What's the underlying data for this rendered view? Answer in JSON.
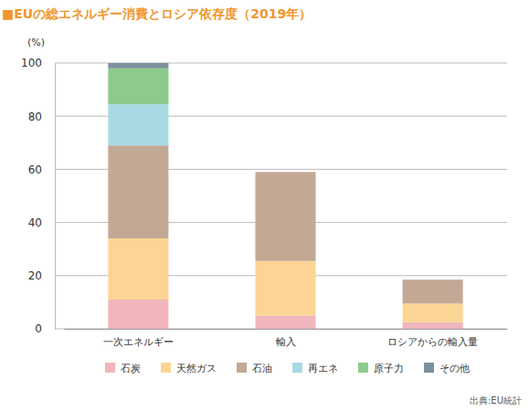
{
  "chart_data": {
    "type": "bar",
    "stacked": true,
    "title": "■EUの総エネルギー消費とロシア依存度（2019年）",
    "y_label": "(%)",
    "source": "出典:EU統計",
    "categories": [
      "一次エネルギー",
      "輸入",
      "ロシアからの輸入量"
    ],
    "series": [
      {
        "name": "石炭",
        "color": "#f0b6bc",
        "values": [
          11,
          5,
          2.5
        ]
      },
      {
        "name": "天然ガス",
        "color": "#fcd595",
        "values": [
          23,
          20.5,
          7
        ]
      },
      {
        "name": "石油",
        "color": "#c3a995",
        "values": [
          35,
          33.5,
          9
        ]
      },
      {
        "name": "再エネ",
        "color": "#a9dae4",
        "values": [
          15.5,
          0,
          0
        ]
      },
      {
        "name": "原子力",
        "color": "#8ccb8b",
        "values": [
          13.5,
          0,
          0
        ]
      },
      {
        "name": "その他",
        "color": "#7b909d",
        "values": [
          2,
          0,
          0
        ]
      }
    ],
    "ylim": [
      0,
      100
    ],
    "yticks": [
      0,
      20,
      40,
      60,
      80,
      100
    ],
    "grid": true,
    "legend": "bottom"
  }
}
